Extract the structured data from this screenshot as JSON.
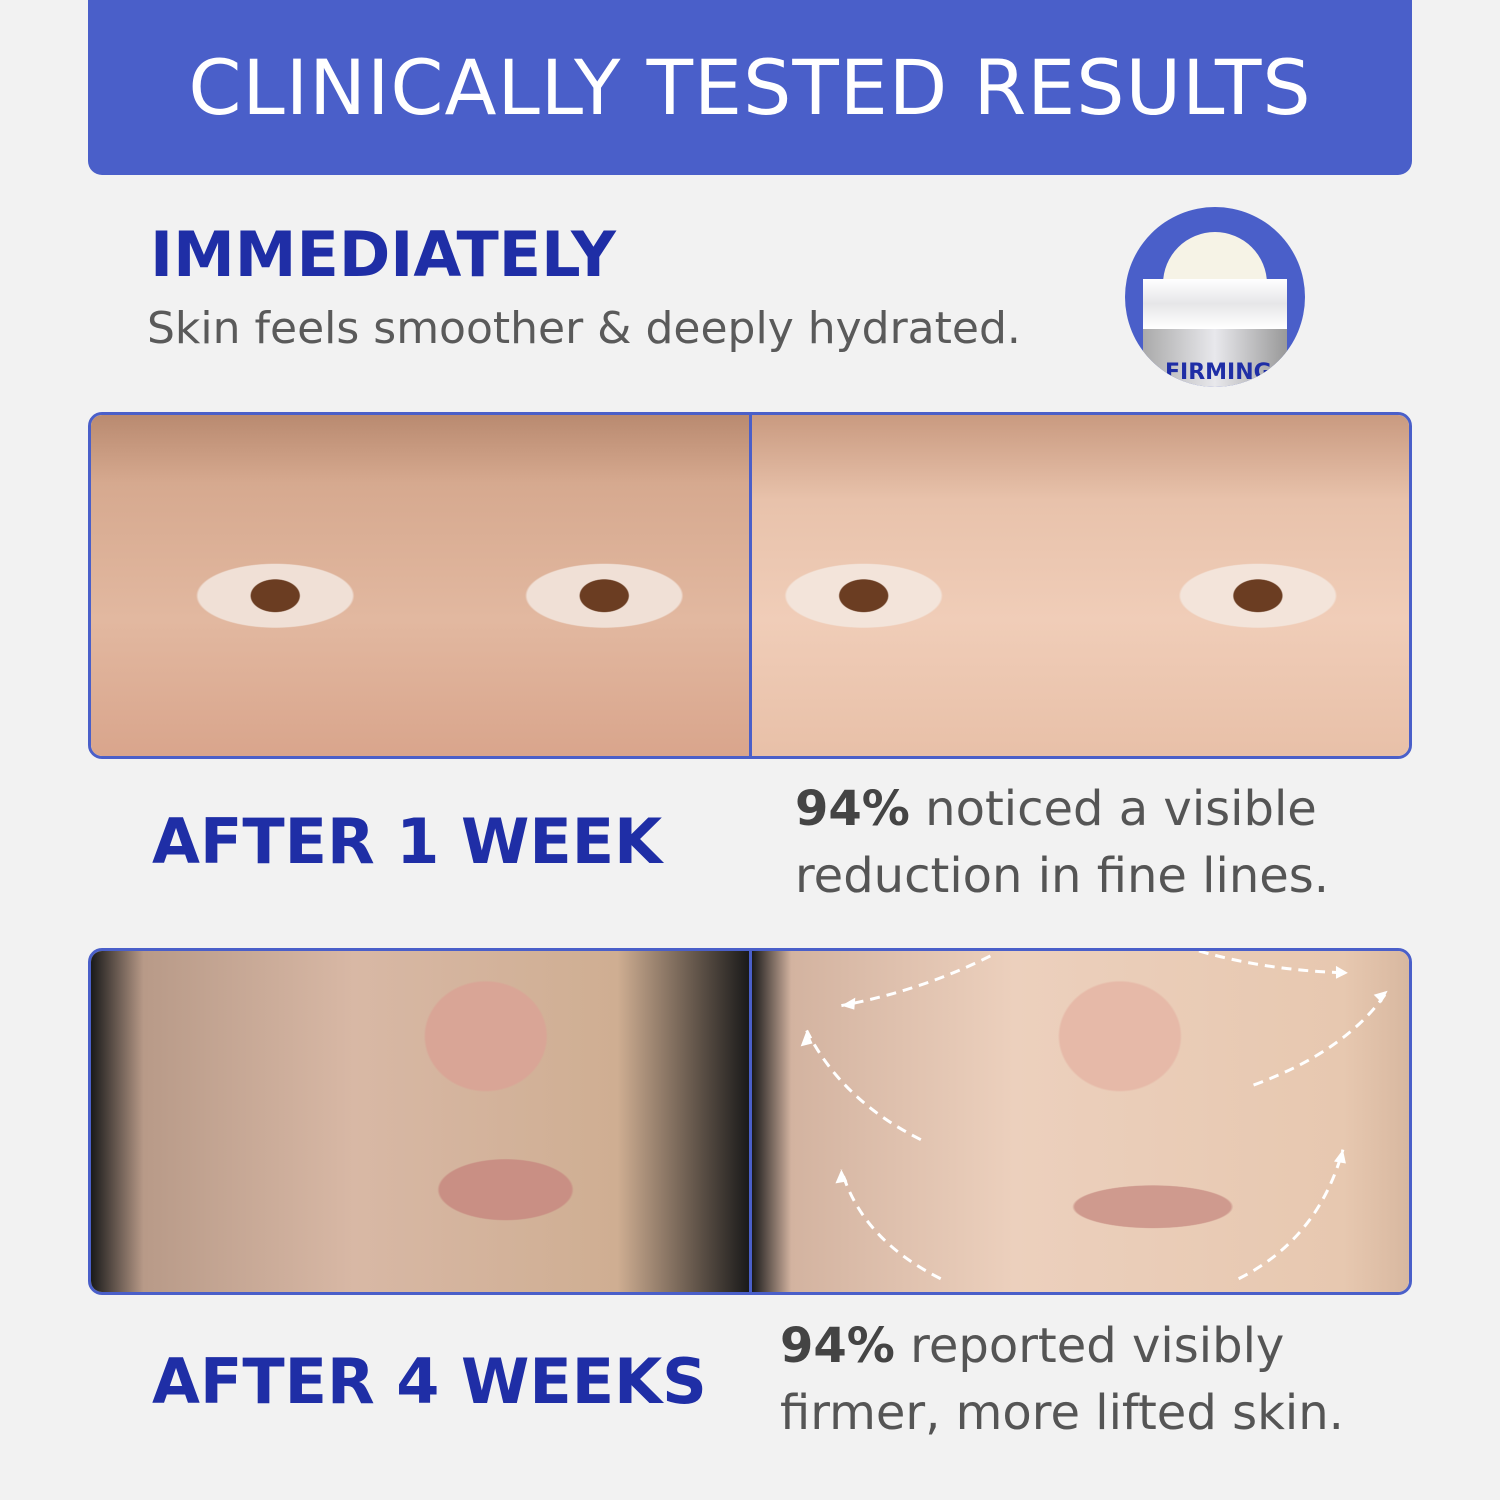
{
  "banner": {
    "title": "CLINICALLY TESTED RESULTS"
  },
  "immediately": {
    "heading": "IMMEDIATELY",
    "text": "Skin feels smoother & deeply hydrated."
  },
  "product": {
    "label": "FIRMING"
  },
  "week1": {
    "heading": "AFTER 1 WEEK",
    "stat": "94%",
    "text_line1": " noticed a visible",
    "text_line2": "reduction in fine lines."
  },
  "week4": {
    "heading": "AFTER 4 WEEKS",
    "stat": "94%",
    "text_line1": " reported visibly",
    "text_line2": "firmer, more lifted skin."
  },
  "colors": {
    "accent": "#4a5fc9",
    "heading": "#1f2ea6",
    "background": "#f2f2f2"
  }
}
